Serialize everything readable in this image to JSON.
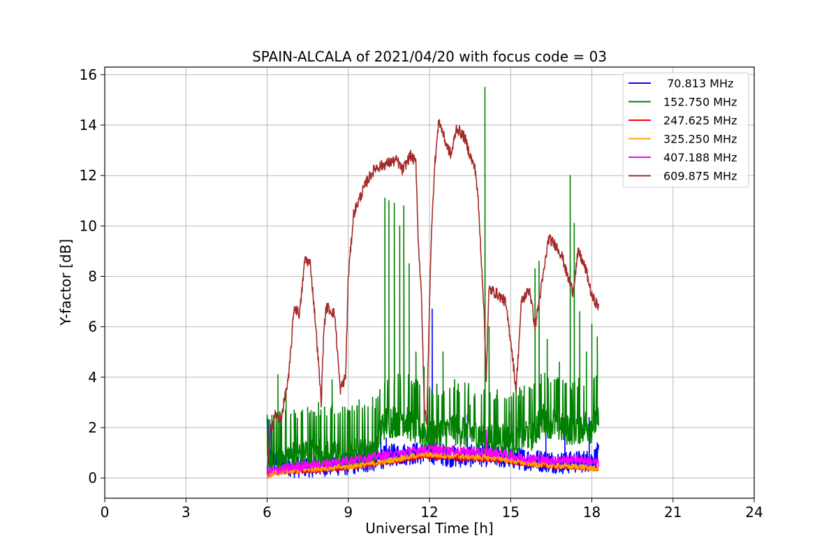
{
  "chart_data": {
    "type": "line",
    "title": "SPAIN-ALCALA of 2021/04/20 with focus code = 03",
    "xlabel": "Universal Time [h]",
    "ylabel": "Y-factor [dB]",
    "xlim": [
      0,
      24
    ],
    "ylim": [
      -0.8,
      16.3
    ],
    "xticks": [
      0,
      3,
      6,
      9,
      12,
      15,
      18,
      21,
      24
    ],
    "yticks": [
      0,
      2,
      4,
      6,
      8,
      10,
      12,
      14,
      16
    ],
    "grid": true,
    "legend_position": "top-right",
    "series": [
      {
        "name": " 70.813 MHz",
        "color": "#0000ff",
        "base": [
          [
            6.0,
            0.3
          ],
          [
            6.1,
            0.8
          ],
          [
            7,
            0.45
          ],
          [
            8,
            0.5
          ],
          [
            9,
            0.55
          ],
          [
            10,
            0.7
          ],
          [
            10.5,
            0.9
          ],
          [
            11,
            0.95
          ],
          [
            12,
            1.0
          ],
          [
            13,
            0.85
          ],
          [
            14,
            0.9
          ],
          [
            15,
            0.8
          ],
          [
            16,
            0.7
          ],
          [
            17,
            0.6
          ],
          [
            18,
            0.7
          ],
          [
            18.25,
            0.9
          ]
        ],
        "noise": 0.45,
        "spikes": [
          [
            6.05,
            2.3
          ],
          [
            6.15,
            2.0
          ],
          [
            8.2,
            1.6
          ],
          [
            9.6,
            1.9
          ],
          [
            10.2,
            2.1
          ],
          [
            10.4,
            1.6
          ],
          [
            12.1,
            6.7
          ],
          [
            13.4,
            2.5
          ],
          [
            14.2,
            3.0
          ],
          [
            16.3,
            2.6
          ],
          [
            17.0,
            1.8
          ],
          [
            17.9,
            2.4
          ],
          [
            18.2,
            1.4
          ]
        ]
      },
      {
        "name": "152.750 MHz",
        "color": "#008000",
        "base": [
          [
            6.0,
            0.5
          ],
          [
            7,
            0.7
          ],
          [
            8,
            0.8
          ],
          [
            9,
            0.8
          ],
          [
            10,
            1.0
          ],
          [
            10.3,
            2.0
          ],
          [
            11,
            2.2
          ],
          [
            11.5,
            1.8
          ],
          [
            12,
            1.5
          ],
          [
            13,
            1.8
          ],
          [
            14,
            1.4
          ],
          [
            15,
            1.4
          ],
          [
            15.8,
            1.6
          ],
          [
            16.2,
            2.2
          ],
          [
            17,
            1.8
          ],
          [
            18,
            1.9
          ],
          [
            18.25,
            2.2
          ]
        ],
        "noise": 1.5,
        "spikes": [
          [
            6.1,
            2.3
          ],
          [
            6.4,
            4.1
          ],
          [
            6.7,
            3.4
          ],
          [
            7.0,
            2.7
          ],
          [
            7.5,
            2.8
          ],
          [
            7.9,
            3.0
          ],
          [
            8.4,
            3.9
          ],
          [
            8.7,
            2.6
          ],
          [
            9.4,
            3.1
          ],
          [
            9.9,
            3.2
          ],
          [
            10.35,
            11.1
          ],
          [
            10.5,
            11.0
          ],
          [
            10.7,
            10.9
          ],
          [
            10.9,
            10.0
          ],
          [
            11.05,
            10.8
          ],
          [
            11.25,
            8.5
          ],
          [
            11.5,
            5.0
          ],
          [
            11.8,
            4.4
          ],
          [
            12.5,
            5.0
          ],
          [
            13.1,
            3.4
          ],
          [
            13.5,
            2.9
          ],
          [
            14.05,
            15.5
          ],
          [
            14.2,
            6.0
          ],
          [
            14.5,
            3.5
          ],
          [
            15.0,
            2.6
          ],
          [
            15.5,
            3.0
          ],
          [
            15.9,
            8.3
          ],
          [
            16.05,
            8.6
          ],
          [
            16.35,
            5.5
          ],
          [
            16.8,
            4.6
          ],
          [
            17.2,
            12.0
          ],
          [
            17.35,
            10.1
          ],
          [
            17.55,
            6.6
          ],
          [
            17.8,
            5.0
          ],
          [
            18.0,
            6.1
          ],
          [
            18.2,
            5.6
          ]
        ]
      },
      {
        "name": "247.625 MHz",
        "color": "#ff0000",
        "base": [
          [
            6.0,
            0.05
          ],
          [
            6.3,
            0.2
          ],
          [
            7,
            0.25
          ],
          [
            8,
            0.3
          ],
          [
            9,
            0.4
          ],
          [
            10,
            0.55
          ],
          [
            11,
            0.7
          ],
          [
            11.8,
            0.85
          ],
          [
            12.5,
            0.8
          ],
          [
            13.5,
            0.75
          ],
          [
            14.5,
            0.7
          ],
          [
            15.5,
            0.55
          ],
          [
            16.5,
            0.45
          ],
          [
            17.5,
            0.4
          ],
          [
            18.25,
            0.35
          ]
        ],
        "noise": 0.08,
        "spikes": []
      },
      {
        "name": "325.250 MHz",
        "color": "#ffa500",
        "base": [
          [
            6.0,
            0.1
          ],
          [
            6.3,
            0.2
          ],
          [
            7,
            0.3
          ],
          [
            8,
            0.4
          ],
          [
            9,
            0.45
          ],
          [
            10,
            0.6
          ],
          [
            11,
            0.8
          ],
          [
            11.8,
            0.95
          ],
          [
            12.5,
            0.9
          ],
          [
            13.5,
            0.85
          ],
          [
            14.5,
            0.8
          ],
          [
            15.5,
            0.6
          ],
          [
            16.5,
            0.5
          ],
          [
            17.5,
            0.45
          ],
          [
            18.25,
            0.35
          ]
        ],
        "noise": 0.12,
        "spikes": []
      },
      {
        "name": "407.188 MHz",
        "color": "#ff00ff",
        "base": [
          [
            6.0,
            0.25
          ],
          [
            6.3,
            0.3
          ],
          [
            7,
            0.45
          ],
          [
            8,
            0.55
          ],
          [
            9,
            0.7
          ],
          [
            10,
            0.85
          ],
          [
            11,
            1.0
          ],
          [
            11.8,
            1.15
          ],
          [
            12.5,
            1.1
          ],
          [
            13.5,
            1.05
          ],
          [
            14.5,
            1.0
          ],
          [
            15.5,
            0.8
          ],
          [
            16.5,
            0.7
          ],
          [
            17.5,
            0.75
          ],
          [
            18.25,
            0.6
          ]
        ],
        "noise": 0.18,
        "spikes": [
          [
            14.1,
            1.9
          ],
          [
            12.2,
            1.4
          ]
        ]
      },
      {
        "name": "609.875 MHz",
        "color": "#a52a2a",
        "base": [
          [
            6.0,
            0.2
          ],
          [
            6.1,
            1.8
          ],
          [
            6.3,
            2.5
          ],
          [
            6.5,
            2.3
          ],
          [
            6.8,
            4.0
          ],
          [
            7.0,
            6.8
          ],
          [
            7.2,
            6.5
          ],
          [
            7.4,
            8.7
          ],
          [
            7.6,
            8.5
          ],
          [
            7.8,
            6.0
          ],
          [
            7.9,
            4.5
          ],
          [
            8.0,
            3.0
          ],
          [
            8.1,
            6.0
          ],
          [
            8.2,
            6.8
          ],
          [
            8.5,
            6.5
          ],
          [
            8.7,
            3.5
          ],
          [
            8.9,
            4.0
          ],
          [
            9.0,
            8.0
          ],
          [
            9.2,
            10.5
          ],
          [
            9.5,
            11.3
          ],
          [
            9.7,
            11.8
          ],
          [
            10.0,
            12.3
          ],
          [
            10.5,
            12.5
          ],
          [
            10.8,
            12.6
          ],
          [
            11.0,
            12.2
          ],
          [
            11.3,
            12.8
          ],
          [
            11.5,
            12.5
          ],
          [
            11.6,
            9.0
          ],
          [
            11.7,
            7.5
          ],
          [
            11.8,
            3.0
          ],
          [
            11.9,
            2.0
          ],
          [
            12.0,
            7.0
          ],
          [
            12.1,
            10.5
          ],
          [
            12.2,
            12.5
          ],
          [
            12.35,
            14.2
          ],
          [
            12.6,
            13.3
          ],
          [
            12.8,
            12.8
          ],
          [
            13.0,
            13.9
          ],
          [
            13.3,
            13.5
          ],
          [
            13.5,
            12.8
          ],
          [
            13.7,
            12.2
          ],
          [
            13.8,
            11.0
          ],
          [
            14.0,
            7.0
          ],
          [
            14.1,
            4.0
          ],
          [
            14.2,
            7.5
          ],
          [
            14.5,
            7.3
          ],
          [
            14.8,
            7.0
          ],
          [
            15.0,
            5.5
          ],
          [
            15.2,
            3.5
          ],
          [
            15.4,
            7.0
          ],
          [
            15.7,
            7.5
          ],
          [
            15.9,
            6.0
          ],
          [
            16.2,
            8.0
          ],
          [
            16.4,
            9.5
          ],
          [
            16.7,
            9.2
          ],
          [
            16.9,
            8.8
          ],
          [
            17.1,
            8.0
          ],
          [
            17.3,
            7.4
          ],
          [
            17.5,
            9.0
          ],
          [
            17.8,
            8.2
          ],
          [
            18.0,
            7.2
          ],
          [
            18.25,
            6.8
          ]
        ],
        "noise": 0.22,
        "spikes": []
      }
    ]
  }
}
